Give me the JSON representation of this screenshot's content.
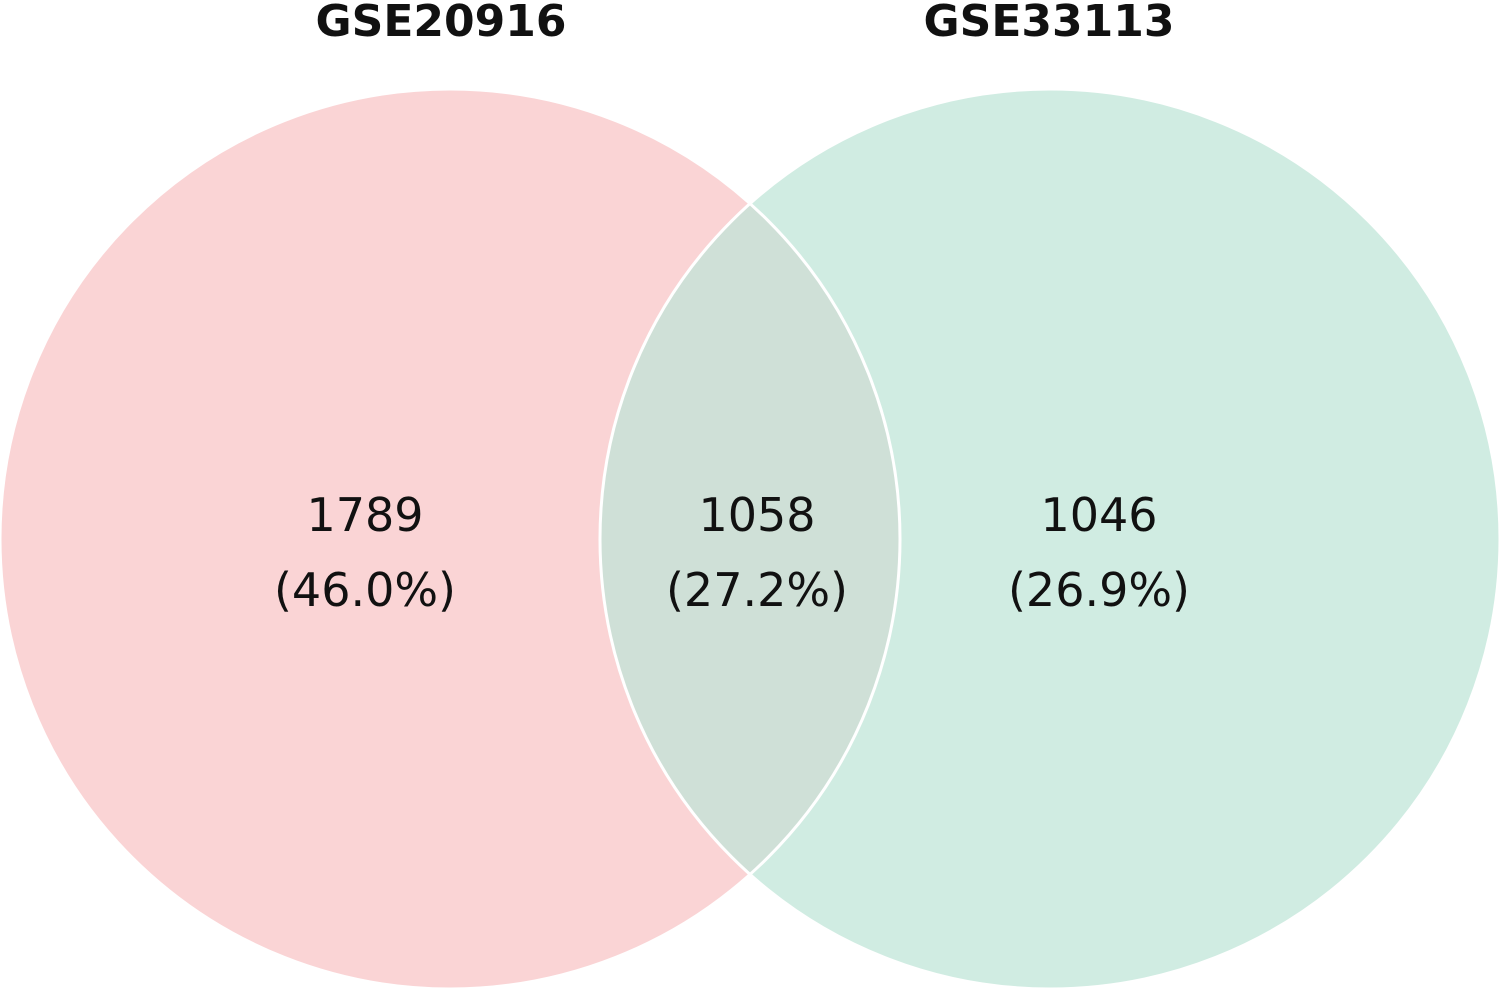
{
  "chart_data": {
    "type": "venn",
    "sets": [
      {
        "name": "GSE20916",
        "color": "#f7b7b9"
      },
      {
        "name": "GSE33113",
        "color": "#a9dcca"
      }
    ],
    "regions": [
      {
        "sets": [
          "GSE20916"
        ],
        "count": "1789",
        "percent": "(46.0%)"
      },
      {
        "sets": [
          "GSE20916",
          "GSE33113"
        ],
        "count": "1058",
        "percent": "(27.2%)"
      },
      {
        "sets": [
          "GSE33113"
        ],
        "count": "1046",
        "percent": "(26.9%)"
      }
    ],
    "outline_color": "#ffffff"
  }
}
